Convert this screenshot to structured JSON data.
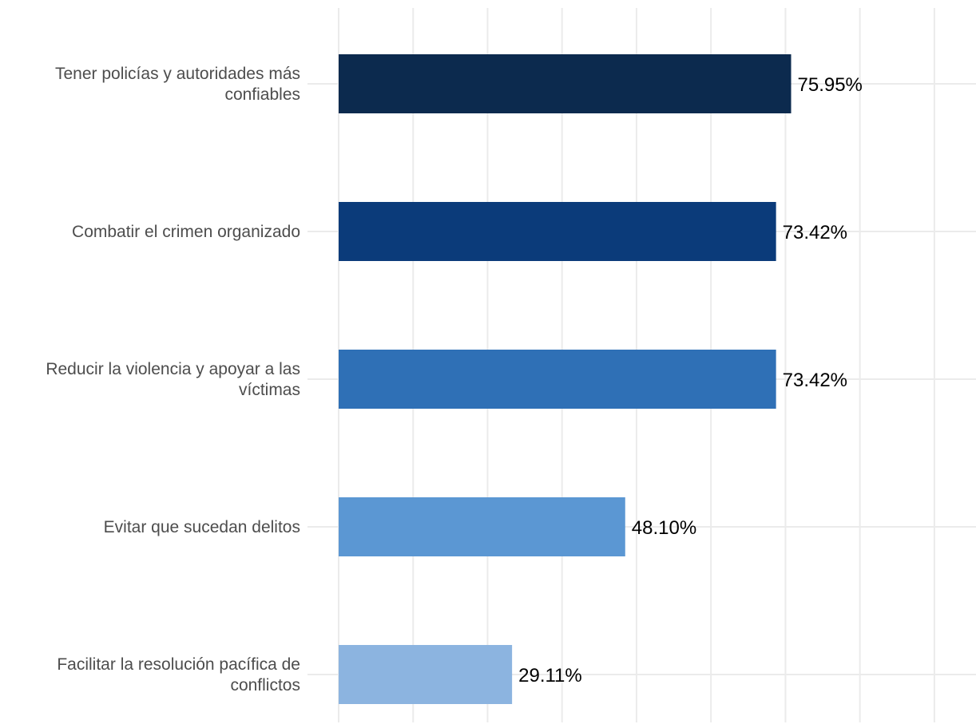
{
  "chart_data": {
    "type": "bar",
    "orientation": "horizontal",
    "categories": [
      [
        "Tener policías y autoridades más",
        "confiables"
      ],
      [
        "Combatir el crimen organizado"
      ],
      [
        "Reducir la violencia y apoyar a las",
        "víctimas"
      ],
      [
        "Evitar que sucedan delitos"
      ],
      [
        "Facilitar la resolución pacífica de",
        "conflictos"
      ]
    ],
    "values": [
      75.95,
      73.42,
      73.42,
      48.1,
      29.11
    ],
    "value_labels": [
      "75.95%",
      "73.42%",
      "73.42%",
      "48.10%",
      "29.11%"
    ],
    "colors": [
      "#0c2a4e",
      "#0b3b7a",
      "#2f70b6",
      "#5b97d3",
      "#8cb4e0"
    ],
    "xlim": [
      0,
      100
    ],
    "grid": true,
    "title": "",
    "xlabel": "",
    "ylabel": ""
  }
}
